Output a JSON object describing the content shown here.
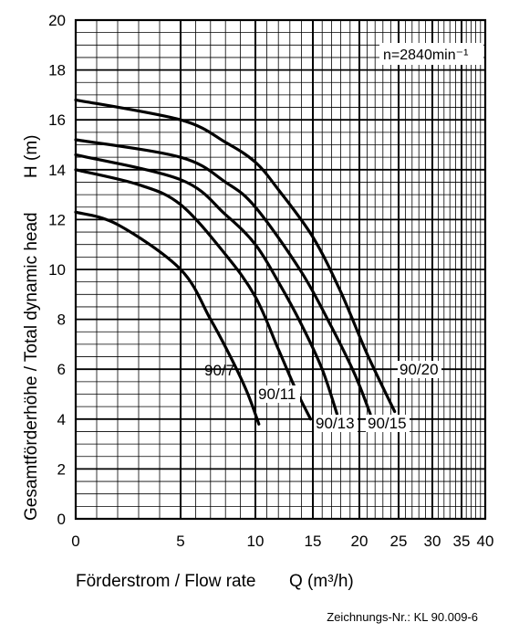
{
  "chart_data": {
    "type": "line",
    "title": "",
    "xlabel_prefix": "Förderstrom / Flow rate",
    "xlabel_unit": "Q (m³/h)",
    "ylabel_prefix": "Gesamtförderhöhe / Total dynamic head",
    "ylabel_unit": "H (m)",
    "speed_label": "n=2840min⁻¹",
    "x_axis": {
      "scale": "nonuniform",
      "tick_values": [
        0,
        5,
        10,
        15,
        20,
        25,
        30,
        35,
        40
      ]
    },
    "ylim": [
      0,
      20
    ],
    "y_ticks": [
      2,
      4,
      6,
      8,
      10,
      12,
      14,
      16,
      18,
      20
    ],
    "y_tick_zero": "0",
    "grid": true,
    "series": [
      {
        "name": "90/7",
        "points": [
          [
            0,
            12.3
          ],
          [
            2,
            11.8
          ],
          [
            5,
            10.0
          ],
          [
            7,
            8.0
          ],
          [
            8.5,
            6.3
          ],
          [
            9.5,
            5.0
          ],
          [
            10.3,
            3.8
          ]
        ]
      },
      {
        "name": "90/11",
        "points": [
          [
            0,
            14.0
          ],
          [
            3,
            13.4
          ],
          [
            5,
            12.6
          ],
          [
            8,
            10.6
          ],
          [
            10,
            8.9
          ],
          [
            12,
            6.8
          ],
          [
            13.5,
            5.2
          ],
          [
            14.8,
            4.0
          ]
        ]
      },
      {
        "name": "90/13",
        "points": [
          [
            0,
            14.6
          ],
          [
            5,
            13.6
          ],
          [
            8,
            12.2
          ],
          [
            10,
            11.0
          ],
          [
            12,
            9.5
          ],
          [
            14,
            7.8
          ],
          [
            16,
            6.0
          ],
          [
            17.6,
            4.2
          ]
        ]
      },
      {
        "name": "90/15",
        "points": [
          [
            0,
            15.2
          ],
          [
            5,
            14.5
          ],
          [
            8,
            13.5
          ],
          [
            10,
            12.5
          ],
          [
            14,
            9.9
          ],
          [
            17,
            7.7
          ],
          [
            19.5,
            5.8
          ],
          [
            21.4,
            4.2
          ]
        ]
      },
      {
        "name": "90/20",
        "points": [
          [
            0,
            16.8
          ],
          [
            5,
            16.0
          ],
          [
            8,
            15.1
          ],
          [
            10,
            14.3
          ],
          [
            12,
            13.2
          ],
          [
            15,
            11.3
          ],
          [
            18,
            9.1
          ],
          [
            21,
            6.6
          ],
          [
            24.5,
            4.3
          ]
        ]
      }
    ]
  },
  "footer": {
    "drawing_number": "Zeichnungs-Nr.: KL 90.009-6"
  }
}
